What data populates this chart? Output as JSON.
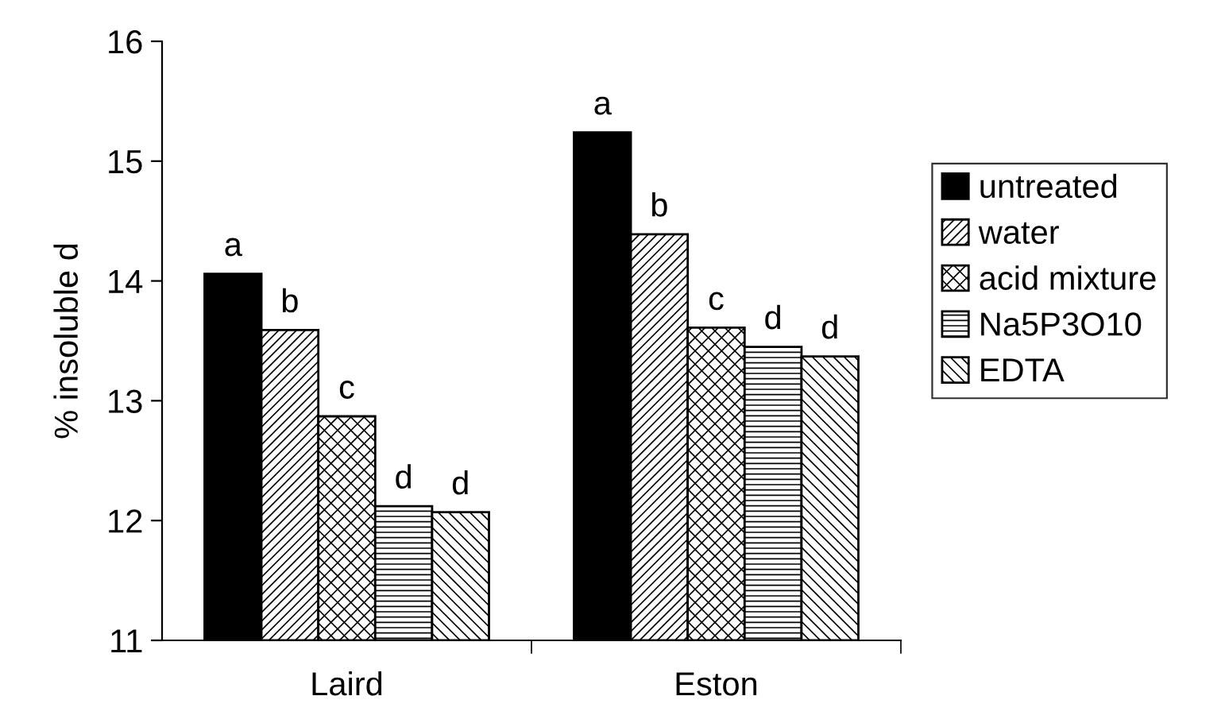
{
  "chart_data": {
    "type": "bar",
    "ylabel": "% insoluble d",
    "categories": [
      "Laird",
      "Eston"
    ],
    "series": [
      {
        "name": "untreated",
        "color": "#000000",
        "values": [
          14.06,
          15.24
        ],
        "value_labels": [
          "a",
          "a"
        ]
      },
      {
        "name": "water",
        "color": "#000000",
        "values": [
          13.59,
          14.39
        ],
        "value_labels": [
          "b",
          "b"
        ]
      },
      {
        "name": "acid mixture",
        "color": "#000000",
        "values": [
          12.87,
          13.61
        ],
        "value_labels": [
          "c",
          "c"
        ]
      },
      {
        "name": "Na5P3O10",
        "color": "#000000",
        "values": [
          12.12,
          13.45
        ],
        "value_labels": [
          "d",
          "d"
        ]
      },
      {
        "name": "EDTA",
        "color": "#000000",
        "values": [
          12.07,
          13.37
        ],
        "value_labels": [
          "d",
          "d"
        ]
      }
    ],
    "ylim": [
      11,
      16
    ],
    "yticks": [
      11,
      12,
      13,
      14,
      15,
      16
    ],
    "grid": false,
    "legend": "right"
  }
}
